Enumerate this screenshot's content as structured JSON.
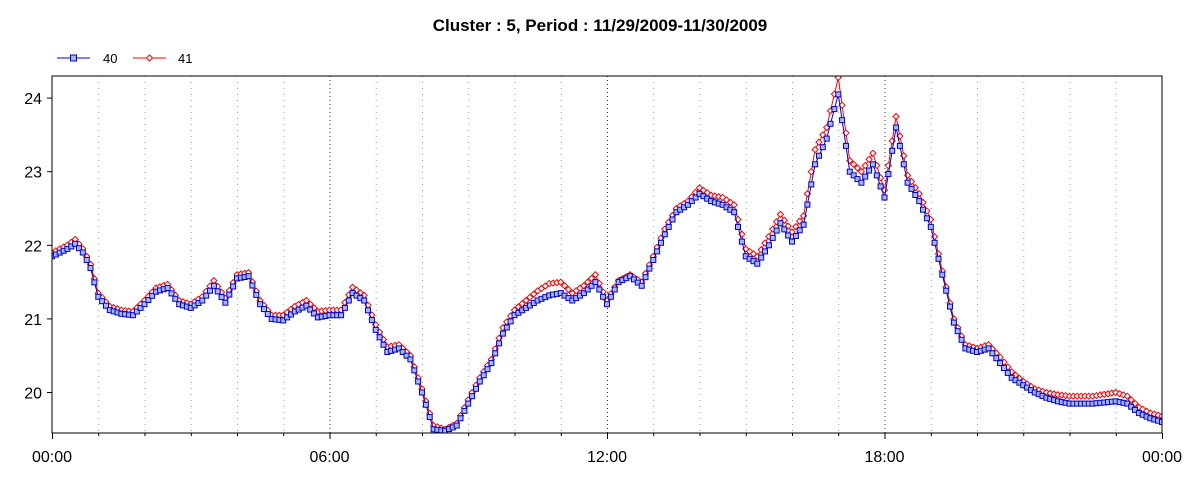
{
  "chart_data": {
    "type": "line",
    "title": "Cluster : 5, Period : 11/29/2009-11/30/2009",
    "xlabel": "",
    "ylabel": "",
    "x_ticks": [
      "00:00",
      "06:00",
      "12:00",
      "18:00",
      "00:00"
    ],
    "x_range_hours": [
      0,
      24
    ],
    "y_ticks": [
      20,
      21,
      22,
      23,
      24
    ],
    "ylim": [
      19.45,
      24.3
    ],
    "grid": true,
    "legend_position": "top-left",
    "series": [
      {
        "name": "40",
        "color": "#0000cc",
        "marker_fill": "#a7b6ff",
        "marker": "square",
        "points": [
          [
            0.0,
            21.85
          ],
          [
            0.33,
            21.95
          ],
          [
            0.5,
            22.02
          ],
          [
            0.67,
            21.9
          ],
          [
            0.83,
            21.7
          ],
          [
            1.0,
            21.3
          ],
          [
            1.25,
            21.12
          ],
          [
            1.5,
            21.07
          ],
          [
            1.75,
            21.05
          ],
          [
            2.0,
            21.2
          ],
          [
            2.25,
            21.37
          ],
          [
            2.5,
            21.42
          ],
          [
            2.75,
            21.2
          ],
          [
            3.0,
            21.15
          ],
          [
            3.25,
            21.25
          ],
          [
            3.5,
            21.45
          ],
          [
            3.75,
            21.22
          ],
          [
            4.0,
            21.55
          ],
          [
            4.25,
            21.58
          ],
          [
            4.5,
            21.2
          ],
          [
            4.75,
            21.0
          ],
          [
            5.0,
            20.98
          ],
          [
            5.25,
            21.1
          ],
          [
            5.5,
            21.18
          ],
          [
            5.75,
            21.02
          ],
          [
            6.0,
            21.05
          ],
          [
            6.25,
            21.05
          ],
          [
            6.5,
            21.35
          ],
          [
            6.75,
            21.25
          ],
          [
            7.0,
            20.85
          ],
          [
            7.25,
            20.55
          ],
          [
            7.5,
            20.6
          ],
          [
            7.75,
            20.45
          ],
          [
            8.0,
            20.0
          ],
          [
            8.25,
            19.5
          ],
          [
            8.5,
            19.48
          ],
          [
            8.75,
            19.55
          ],
          [
            9.0,
            19.85
          ],
          [
            9.25,
            20.15
          ],
          [
            9.5,
            20.4
          ],
          [
            9.75,
            20.8
          ],
          [
            10.0,
            21.05
          ],
          [
            10.25,
            21.15
          ],
          [
            10.5,
            21.25
          ],
          [
            10.75,
            21.32
          ],
          [
            11.0,
            21.35
          ],
          [
            11.25,
            21.25
          ],
          [
            11.5,
            21.35
          ],
          [
            11.75,
            21.5
          ],
          [
            12.0,
            21.2
          ],
          [
            12.25,
            21.5
          ],
          [
            12.5,
            21.58
          ],
          [
            12.75,
            21.45
          ],
          [
            13.0,
            21.8
          ],
          [
            13.25,
            22.15
          ],
          [
            13.5,
            22.45
          ],
          [
            13.75,
            22.55
          ],
          [
            14.0,
            22.7
          ],
          [
            14.25,
            22.6
          ],
          [
            14.5,
            22.55
          ],
          [
            14.75,
            22.45
          ],
          [
            15.0,
            21.85
          ],
          [
            15.25,
            21.75
          ],
          [
            15.5,
            22.0
          ],
          [
            15.75,
            22.3
          ],
          [
            16.0,
            22.05
          ],
          [
            16.25,
            22.28
          ],
          [
            16.5,
            23.1
          ],
          [
            16.75,
            23.45
          ],
          [
            17.0,
            24.05
          ],
          [
            17.25,
            23.0
          ],
          [
            17.5,
            22.85
          ],
          [
            17.75,
            23.1
          ],
          [
            18.0,
            22.65
          ],
          [
            18.25,
            23.6
          ],
          [
            18.5,
            22.85
          ],
          [
            18.75,
            22.6
          ],
          [
            19.0,
            22.25
          ],
          [
            19.25,
            21.6
          ],
          [
            19.5,
            20.95
          ],
          [
            19.75,
            20.6
          ],
          [
            20.0,
            20.55
          ],
          [
            20.25,
            20.6
          ],
          [
            20.5,
            20.4
          ],
          [
            20.75,
            20.2
          ],
          [
            21.0,
            20.1
          ],
          [
            21.25,
            20.0
          ],
          [
            21.5,
            19.93
          ],
          [
            21.75,
            19.88
          ],
          [
            22.0,
            19.85
          ],
          [
            22.5,
            19.85
          ],
          [
            23.0,
            19.88
          ],
          [
            23.25,
            19.85
          ],
          [
            23.5,
            19.72
          ],
          [
            23.75,
            19.65
          ],
          [
            24.0,
            19.6
          ],
          [
            24.5,
            19.55
          ],
          [
            25.0,
            19.55
          ]
        ]
      },
      {
        "name": "41",
        "color": "#ff0000",
        "marker_fill": "#ffffff",
        "marker": "diamond",
        "points": [
          [
            0.0,
            21.9
          ],
          [
            0.33,
            22.0
          ],
          [
            0.5,
            22.08
          ],
          [
            0.67,
            21.95
          ],
          [
            0.83,
            21.75
          ],
          [
            1.0,
            21.35
          ],
          [
            1.25,
            21.17
          ],
          [
            1.5,
            21.12
          ],
          [
            1.75,
            21.1
          ],
          [
            2.0,
            21.25
          ],
          [
            2.25,
            21.42
          ],
          [
            2.5,
            21.47
          ],
          [
            2.75,
            21.25
          ],
          [
            3.0,
            21.2
          ],
          [
            3.25,
            21.3
          ],
          [
            3.5,
            21.52
          ],
          [
            3.75,
            21.28
          ],
          [
            4.0,
            21.6
          ],
          [
            4.25,
            21.63
          ],
          [
            4.5,
            21.25
          ],
          [
            4.75,
            21.05
          ],
          [
            5.0,
            21.05
          ],
          [
            5.25,
            21.17
          ],
          [
            5.5,
            21.25
          ],
          [
            5.75,
            21.1
          ],
          [
            6.0,
            21.12
          ],
          [
            6.25,
            21.12
          ],
          [
            6.5,
            21.43
          ],
          [
            6.75,
            21.32
          ],
          [
            7.0,
            20.92
          ],
          [
            7.25,
            20.62
          ],
          [
            7.5,
            20.65
          ],
          [
            7.75,
            20.5
          ],
          [
            8.0,
            20.05
          ],
          [
            8.25,
            19.55
          ],
          [
            8.5,
            19.5
          ],
          [
            8.75,
            19.58
          ],
          [
            9.0,
            19.9
          ],
          [
            9.25,
            20.2
          ],
          [
            9.5,
            20.45
          ],
          [
            9.75,
            20.88
          ],
          [
            10.0,
            21.12
          ],
          [
            10.25,
            21.25
          ],
          [
            10.5,
            21.38
          ],
          [
            10.75,
            21.48
          ],
          [
            11.0,
            21.5
          ],
          [
            11.25,
            21.35
          ],
          [
            11.5,
            21.45
          ],
          [
            11.75,
            21.6
          ],
          [
            12.0,
            21.25
          ],
          [
            12.25,
            21.52
          ],
          [
            12.5,
            21.6
          ],
          [
            12.75,
            21.5
          ],
          [
            13.0,
            21.85
          ],
          [
            13.25,
            22.22
          ],
          [
            13.5,
            22.5
          ],
          [
            13.75,
            22.6
          ],
          [
            14.0,
            22.78
          ],
          [
            14.25,
            22.68
          ],
          [
            14.5,
            22.65
          ],
          [
            14.75,
            22.55
          ],
          [
            15.0,
            21.95
          ],
          [
            15.25,
            21.85
          ],
          [
            15.5,
            22.12
          ],
          [
            15.75,
            22.42
          ],
          [
            16.0,
            22.18
          ],
          [
            16.25,
            22.4
          ],
          [
            16.5,
            23.3
          ],
          [
            16.75,
            23.6
          ],
          [
            17.0,
            24.28
          ],
          [
            17.25,
            23.15
          ],
          [
            17.5,
            23.0
          ],
          [
            17.75,
            23.25
          ],
          [
            18.0,
            22.75
          ],
          [
            18.25,
            23.75
          ],
          [
            18.5,
            22.95
          ],
          [
            18.75,
            22.7
          ],
          [
            19.0,
            22.35
          ],
          [
            19.25,
            21.65
          ],
          [
            19.5,
            21.0
          ],
          [
            19.75,
            20.65
          ],
          [
            20.0,
            20.6
          ],
          [
            20.25,
            20.65
          ],
          [
            20.5,
            20.48
          ],
          [
            20.75,
            20.28
          ],
          [
            21.0,
            20.15
          ],
          [
            21.25,
            20.05
          ],
          [
            21.5,
            20.0
          ],
          [
            21.75,
            19.97
          ],
          [
            22.0,
            19.95
          ],
          [
            22.5,
            19.95
          ],
          [
            23.0,
            20.0
          ],
          [
            23.25,
            19.95
          ],
          [
            23.5,
            19.8
          ],
          [
            23.75,
            19.72
          ],
          [
            24.0,
            19.68
          ],
          [
            24.5,
            19.65
          ],
          [
            25.0,
            19.6
          ]
        ]
      }
    ]
  }
}
